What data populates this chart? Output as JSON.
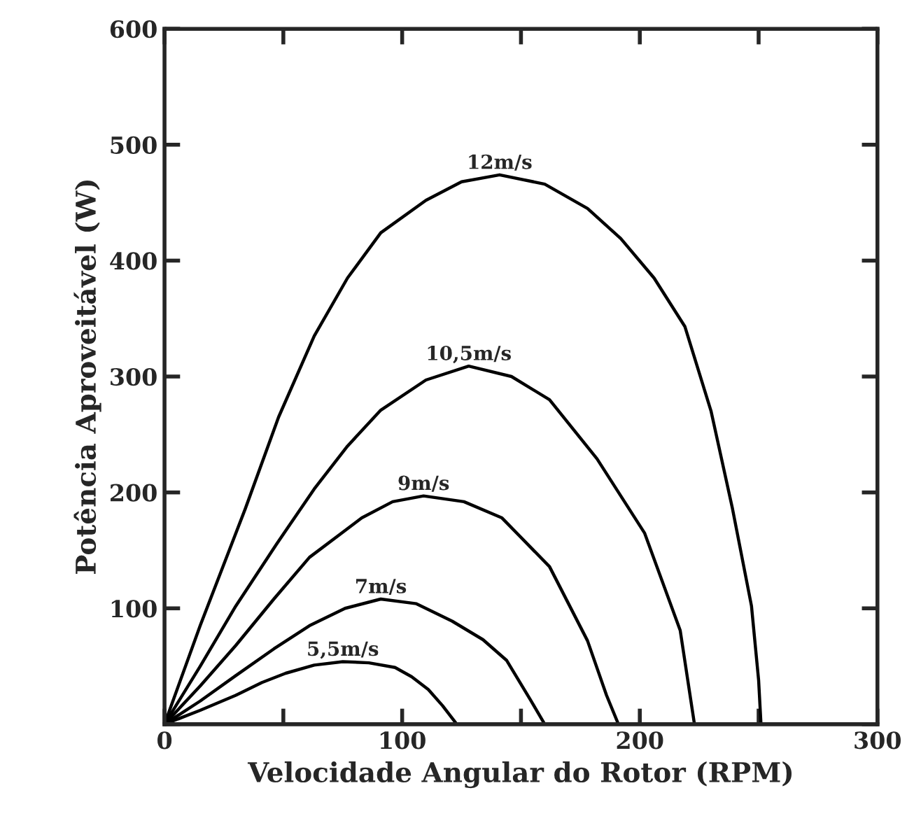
{
  "chart_data": {
    "type": "line",
    "xlabel": "Velocidade Angular do Rotor (RPM)",
    "ylabel": "Potência Aproveitável (W)",
    "xlim": [
      0,
      300
    ],
    "ylim": [
      0,
      600
    ],
    "xticks": [
      0,
      {
        "value": 50,
        "label": null
      },
      100,
      {
        "value": 150,
        "label": null
      },
      200,
      {
        "value": 250,
        "label": null
      },
      300
    ],
    "yticks": [
      {
        "value": 0,
        "label": null
      },
      100,
      200,
      300,
      400,
      500,
      600
    ],
    "grid": false,
    "legend": false,
    "marker": "none",
    "line_style": "solid",
    "series": [
      {
        "name": "12m/s",
        "color": "#000000",
        "x": [
          0,
          15,
          34,
          48,
          63,
          77,
          91,
          110,
          125,
          141,
          160,
          178,
          192,
          206,
          219,
          230,
          239,
          247,
          250,
          251
        ],
        "values": [
          0,
          85,
          186,
          265,
          335,
          385,
          424,
          452,
          468,
          474,
          466,
          445,
          419,
          385,
          343,
          270,
          186,
          102,
          38,
          0
        ]
      },
      {
        "name": "10,5m/s",
        "color": "#000000",
        "x": [
          0,
          15,
          30,
          47,
          63,
          77,
          91,
          110,
          128,
          146,
          162,
          182,
          202,
          217,
          223
        ],
        "values": [
          0,
          50,
          102,
          155,
          203,
          240,
          271,
          297,
          309,
          300,
          280,
          229,
          165,
          81,
          0
        ]
      },
      {
        "name": "9m/s",
        "color": "#000000",
        "x": [
          0,
          15,
          30,
          46,
          61,
          83,
          96,
          109,
          126,
          142,
          162,
          178,
          186,
          191
        ],
        "values": [
          0,
          33,
          68,
          108,
          144,
          178,
          192,
          197,
          192,
          178,
          136,
          72,
          25,
          0
        ]
      },
      {
        "name": "7m/s",
        "color": "#000000",
        "x": [
          0,
          15,
          30,
          46,
          61,
          76,
          91,
          106,
          121,
          134,
          144,
          154,
          160
        ],
        "values": [
          0,
          20,
          42,
          65,
          85,
          100,
          108,
          104,
          89,
          73,
          55,
          21,
          0
        ]
      },
      {
        "name": "5,5m/s",
        "color": "#000000",
        "x": [
          0,
          15,
          30,
          41,
          51,
          63,
          75,
          86,
          97,
          104,
          111,
          117,
          123
        ],
        "values": [
          0,
          12,
          25,
          36,
          44,
          51,
          54,
          53,
          49,
          41,
          30,
          16,
          0
        ]
      }
    ]
  }
}
